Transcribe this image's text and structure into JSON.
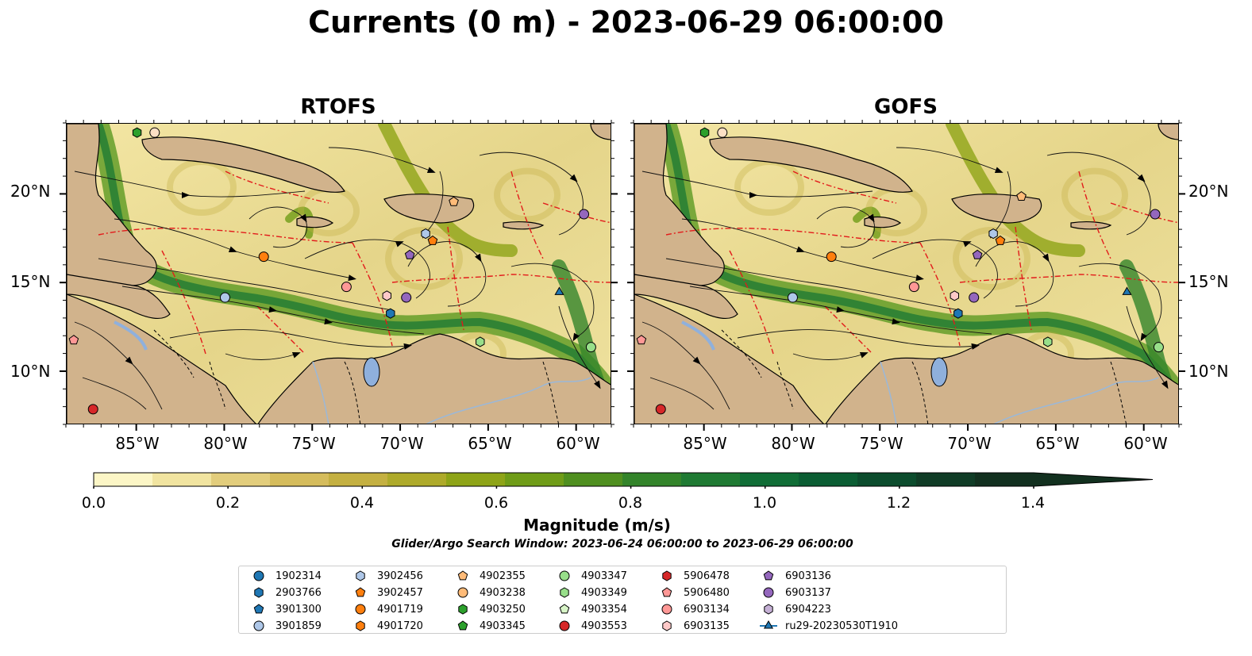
{
  "title": "Currents (0 m) - 2023-06-29 06:00:00",
  "panels": [
    {
      "title": "RTOFS"
    },
    {
      "title": "GOFS"
    }
  ],
  "lat_ticks": [
    "20°N",
    "15°N",
    "10°N"
  ],
  "lon_ticks": [
    "85°W",
    "80°W",
    "75°W",
    "70°W",
    "65°W",
    "60°W"
  ],
  "colorbar": {
    "label": "Magnitude (m/s)",
    "ticks": [
      "0.0",
      "0.2",
      "0.4",
      "0.6",
      "0.8",
      "1.0",
      "1.2",
      "1.4"
    ],
    "colors": [
      "#fcf6c6",
      "#f1e4a0",
      "#e2cd7c",
      "#d5bc5c",
      "#c4b041",
      "#aeaa2a",
      "#8ea417",
      "#6f9c17",
      "#4f8f1f",
      "#33842a",
      "#1f7a33",
      "#106d36",
      "#0b5d33",
      "#0c4c2d",
      "#103c26",
      "#12301f"
    ],
    "extend": "max"
  },
  "search_window": "Glider/Argo Search Window: 2023-06-24 06:00:00 to 2023-06-29 06:00:00",
  "legend": [
    {
      "label": "1902314",
      "marker": "circle",
      "color": "#1f77b4"
    },
    {
      "label": "2903766",
      "marker": "hexagon",
      "color": "#1f77b4"
    },
    {
      "label": "3901300",
      "marker": "pentagon",
      "color": "#1f77b4"
    },
    {
      "label": "3901859",
      "marker": "circle",
      "color": "#aec7e8"
    },
    {
      "label": "3902456",
      "marker": "hexagon",
      "color": "#aec7e8"
    },
    {
      "label": "3902457",
      "marker": "pentagon",
      "color": "#ff7f0e"
    },
    {
      "label": "4901719",
      "marker": "circle",
      "color": "#ff7f0e"
    },
    {
      "label": "4901720",
      "marker": "hexagon",
      "color": "#ff7f0e"
    },
    {
      "label": "4902355",
      "marker": "pentagon",
      "color": "#ffbb78"
    },
    {
      "label": "4903238",
      "marker": "circle",
      "color": "#ffbb78"
    },
    {
      "label": "4903250",
      "marker": "hexagon",
      "color": "#2ca02c"
    },
    {
      "label": "4903345",
      "marker": "pentagon",
      "color": "#2ca02c"
    },
    {
      "label": "4903347",
      "marker": "circle",
      "color": "#98df8a"
    },
    {
      "label": "4903349",
      "marker": "hexagon",
      "color": "#98df8a"
    },
    {
      "label": "4903354",
      "marker": "pentagon",
      "color": "#d8f5c8"
    },
    {
      "label": "4903553",
      "marker": "circle",
      "color": "#d62728"
    },
    {
      "label": "5906478",
      "marker": "hexagon",
      "color": "#d62728"
    },
    {
      "label": "5906480",
      "marker": "pentagon",
      "color": "#ff9896"
    },
    {
      "label": "6903134",
      "marker": "circle",
      "color": "#ff9896"
    },
    {
      "label": "6903135",
      "marker": "hexagon",
      "color": "#ffc9c8"
    },
    {
      "label": "6903136",
      "marker": "pentagon",
      "color": "#9467bd"
    },
    {
      "label": "6903137",
      "marker": "circle",
      "color": "#9467bd"
    },
    {
      "label": "6904223",
      "marker": "hexagon",
      "color": "#c5b0d5"
    },
    {
      "label": "ru29-20230530T1910",
      "marker": "triangle-line",
      "color": "#1f77b4"
    }
  ],
  "extent": {
    "lon": [
      -89,
      -58
    ],
    "lat": [
      7,
      24
    ]
  },
  "panel_markers": [
    [
      {
        "lon": -85.0,
        "lat": 23.5,
        "marker": "hexagon",
        "color": "#2ca02c"
      },
      {
        "lon": -84.0,
        "lat": 23.5,
        "marker": "circle",
        "color": "#fde0c5"
      },
      {
        "lon": -67.0,
        "lat": 19.6,
        "marker": "pentagon",
        "color": "#ffbb78"
      },
      {
        "lon": -59.6,
        "lat": 18.9,
        "marker": "circle",
        "color": "#9467bd"
      },
      {
        "lon": -68.6,
        "lat": 17.8,
        "marker": "hexagon",
        "color": "#aec7e8"
      },
      {
        "lon": -68.2,
        "lat": 17.4,
        "marker": "pentagon",
        "color": "#ff7f0e"
      },
      {
        "lon": -77.8,
        "lat": 16.5,
        "marker": "circle",
        "color": "#ff7f0e"
      },
      {
        "lon": -69.5,
        "lat": 16.6,
        "marker": "pentagon",
        "color": "#9467bd"
      },
      {
        "lon": -73.1,
        "lat": 14.8,
        "marker": "circle",
        "color": "#ff9896"
      },
      {
        "lon": -70.8,
        "lat": 14.3,
        "marker": "hexagon",
        "color": "#ffc9c8"
      },
      {
        "lon": -69.7,
        "lat": 14.2,
        "marker": "circle",
        "color": "#9467bd"
      },
      {
        "lon": -80.0,
        "lat": 14.2,
        "marker": "circle",
        "color": "#aec7e8"
      },
      {
        "lon": -70.6,
        "lat": 13.3,
        "marker": "hexagon",
        "color": "#1f77b4"
      },
      {
        "lon": -61.0,
        "lat": 14.5,
        "marker": "triangle",
        "color": "#1f77b4"
      },
      {
        "lon": -65.5,
        "lat": 11.7,
        "marker": "hexagon",
        "color": "#98df8a"
      },
      {
        "lon": -59.2,
        "lat": 11.4,
        "marker": "circle",
        "color": "#98df8a"
      },
      {
        "lon": -88.6,
        "lat": 11.8,
        "marker": "pentagon",
        "color": "#ff9896"
      },
      {
        "lon": -87.5,
        "lat": 7.9,
        "marker": "circle",
        "color": "#d62728"
      }
    ],
    [
      {
        "lon": -85.0,
        "lat": 23.5,
        "marker": "hexagon",
        "color": "#2ca02c"
      },
      {
        "lon": -84.0,
        "lat": 23.5,
        "marker": "circle",
        "color": "#fde0c5"
      },
      {
        "lon": -67.0,
        "lat": 19.9,
        "marker": "pentagon",
        "color": "#ffbb78"
      },
      {
        "lon": -59.4,
        "lat": 18.9,
        "marker": "circle",
        "color": "#9467bd"
      },
      {
        "lon": -68.6,
        "lat": 17.8,
        "marker": "hexagon",
        "color": "#aec7e8"
      },
      {
        "lon": -68.2,
        "lat": 17.4,
        "marker": "pentagon",
        "color": "#ff7f0e"
      },
      {
        "lon": -77.8,
        "lat": 16.5,
        "marker": "circle",
        "color": "#ff7f0e"
      },
      {
        "lon": -69.5,
        "lat": 16.6,
        "marker": "pentagon",
        "color": "#9467bd"
      },
      {
        "lon": -73.1,
        "lat": 14.8,
        "marker": "circle",
        "color": "#ff9896"
      },
      {
        "lon": -70.8,
        "lat": 14.3,
        "marker": "hexagon",
        "color": "#ffc9c8"
      },
      {
        "lon": -69.7,
        "lat": 14.2,
        "marker": "circle",
        "color": "#9467bd"
      },
      {
        "lon": -80.0,
        "lat": 14.2,
        "marker": "circle",
        "color": "#aec7e8"
      },
      {
        "lon": -70.6,
        "lat": 13.3,
        "marker": "hexagon",
        "color": "#1f77b4"
      },
      {
        "lon": -61.0,
        "lat": 14.5,
        "marker": "triangle",
        "color": "#1f77b4"
      },
      {
        "lon": -65.5,
        "lat": 11.7,
        "marker": "hexagon",
        "color": "#98df8a"
      },
      {
        "lon": -59.2,
        "lat": 11.4,
        "marker": "circle",
        "color": "#98df8a"
      },
      {
        "lon": -88.6,
        "lat": 11.8,
        "marker": "pentagon",
        "color": "#ff9896"
      },
      {
        "lon": -87.5,
        "lat": 7.9,
        "marker": "circle",
        "color": "#d62728"
      }
    ]
  ]
}
